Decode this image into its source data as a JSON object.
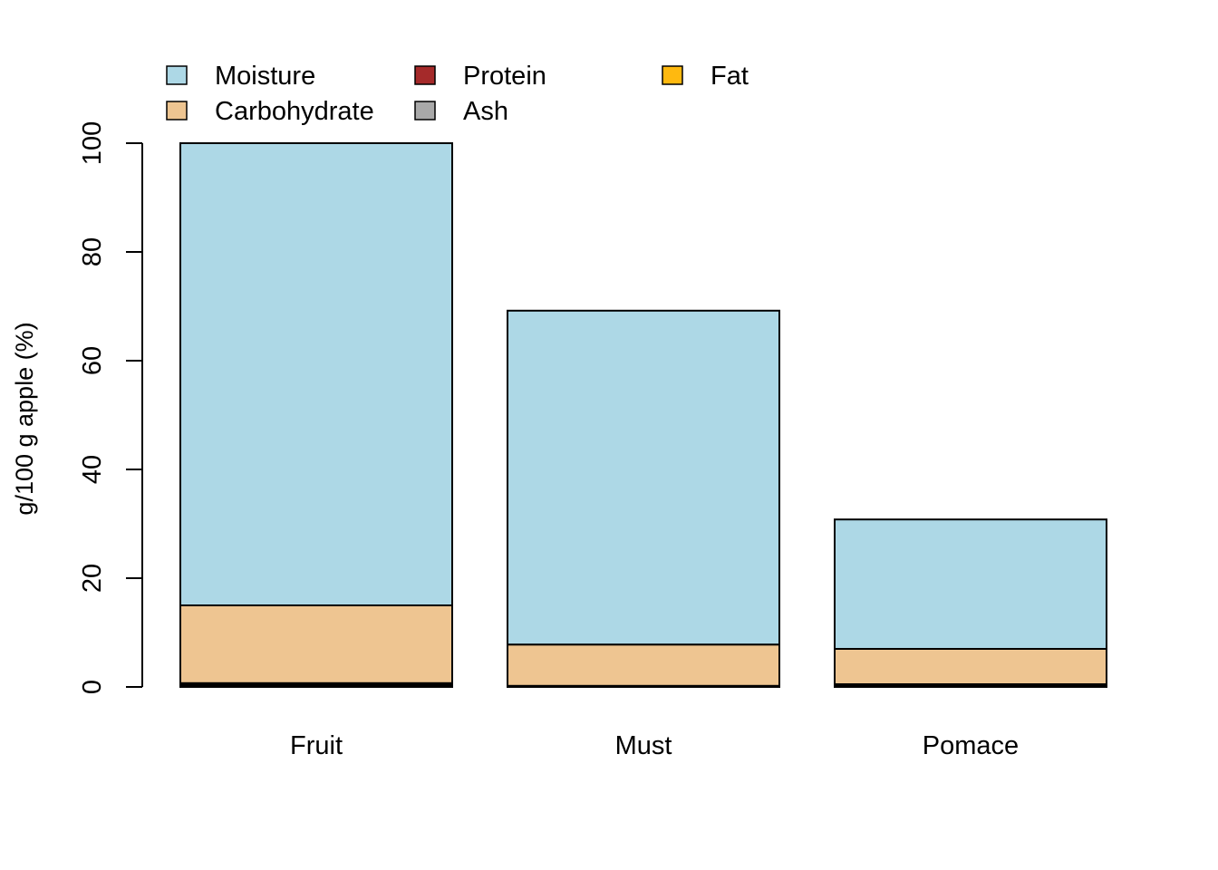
{
  "chart_data": {
    "type": "bar",
    "stacked": true,
    "categories": [
      "Fruit",
      "Must",
      "Pomace"
    ],
    "series": [
      {
        "name": "Ash",
        "color": "#a9a9a9",
        "values": [
          0.3,
          0.1,
          0.2
        ]
      },
      {
        "name": "Fat",
        "color": "#ffb90f",
        "values": [
          0.1,
          0.05,
          0.1
        ]
      },
      {
        "name": "Protein",
        "color": "#a52a2a",
        "values": [
          0.3,
          0.05,
          0.2
        ]
      },
      {
        "name": "Carbohydrate",
        "color": "#eec591",
        "values": [
          14.3,
          7.6,
          6.5
        ]
      },
      {
        "name": "Moisture",
        "color": "#add8e6",
        "values": [
          85.0,
          61.4,
          23.8
        ]
      }
    ],
    "legend_order": [
      "Moisture",
      "Carbohydrate",
      "Protein",
      "Ash",
      "Fat"
    ],
    "legend_position": "top-left",
    "title": "",
    "xlabel": "",
    "ylabel": "g/100 g apple (%)",
    "ylim": [
      0,
      100
    ],
    "yticks": [
      0,
      20,
      40,
      60,
      80,
      100
    ],
    "grid": false
  }
}
